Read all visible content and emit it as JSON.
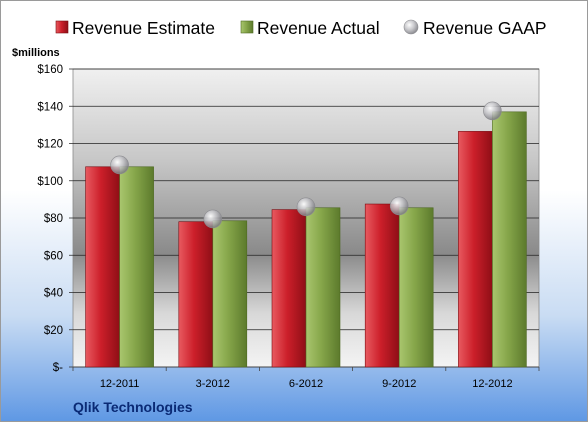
{
  "colors": {
    "estimate": "#cc1f2a",
    "actual": "#86a64a",
    "gaap": "#b8b8bc",
    "company": "#0a2a75"
  },
  "legend": {
    "estimate_label": "Revenue Estimate",
    "actual_label": "Revenue Actual",
    "gaap_label": "Revenue GAAP"
  },
  "company_name": "Qlik Technologies",
  "chart_data": {
    "type": "bar",
    "unit_label": "$millions",
    "categories": [
      "12-2011",
      "3-2012",
      "6-2012",
      "9-2012",
      "12-2012"
    ],
    "series": [
      {
        "name": "Revenue Estimate",
        "type": "bar",
        "values": [
          107.5,
          78,
          84.5,
          87.5,
          126.5
        ]
      },
      {
        "name": "Revenue Actual",
        "type": "bar",
        "values": [
          107.5,
          78.5,
          85.5,
          85.5,
          137
        ]
      },
      {
        "name": "Revenue GAAP",
        "type": "marker",
        "values": [
          108.5,
          79.5,
          86,
          86.5,
          137.5
        ]
      }
    ],
    "ylim": [
      0,
      160
    ],
    "yticks": [
      0,
      20,
      40,
      60,
      80,
      100,
      120,
      140,
      160
    ],
    "ytick_labels": [
      "$-",
      "$20",
      "$40",
      "$60",
      "$80",
      "$100",
      "$120",
      "$140",
      "$160"
    ],
    "grid": true,
    "legend_position": "top"
  }
}
